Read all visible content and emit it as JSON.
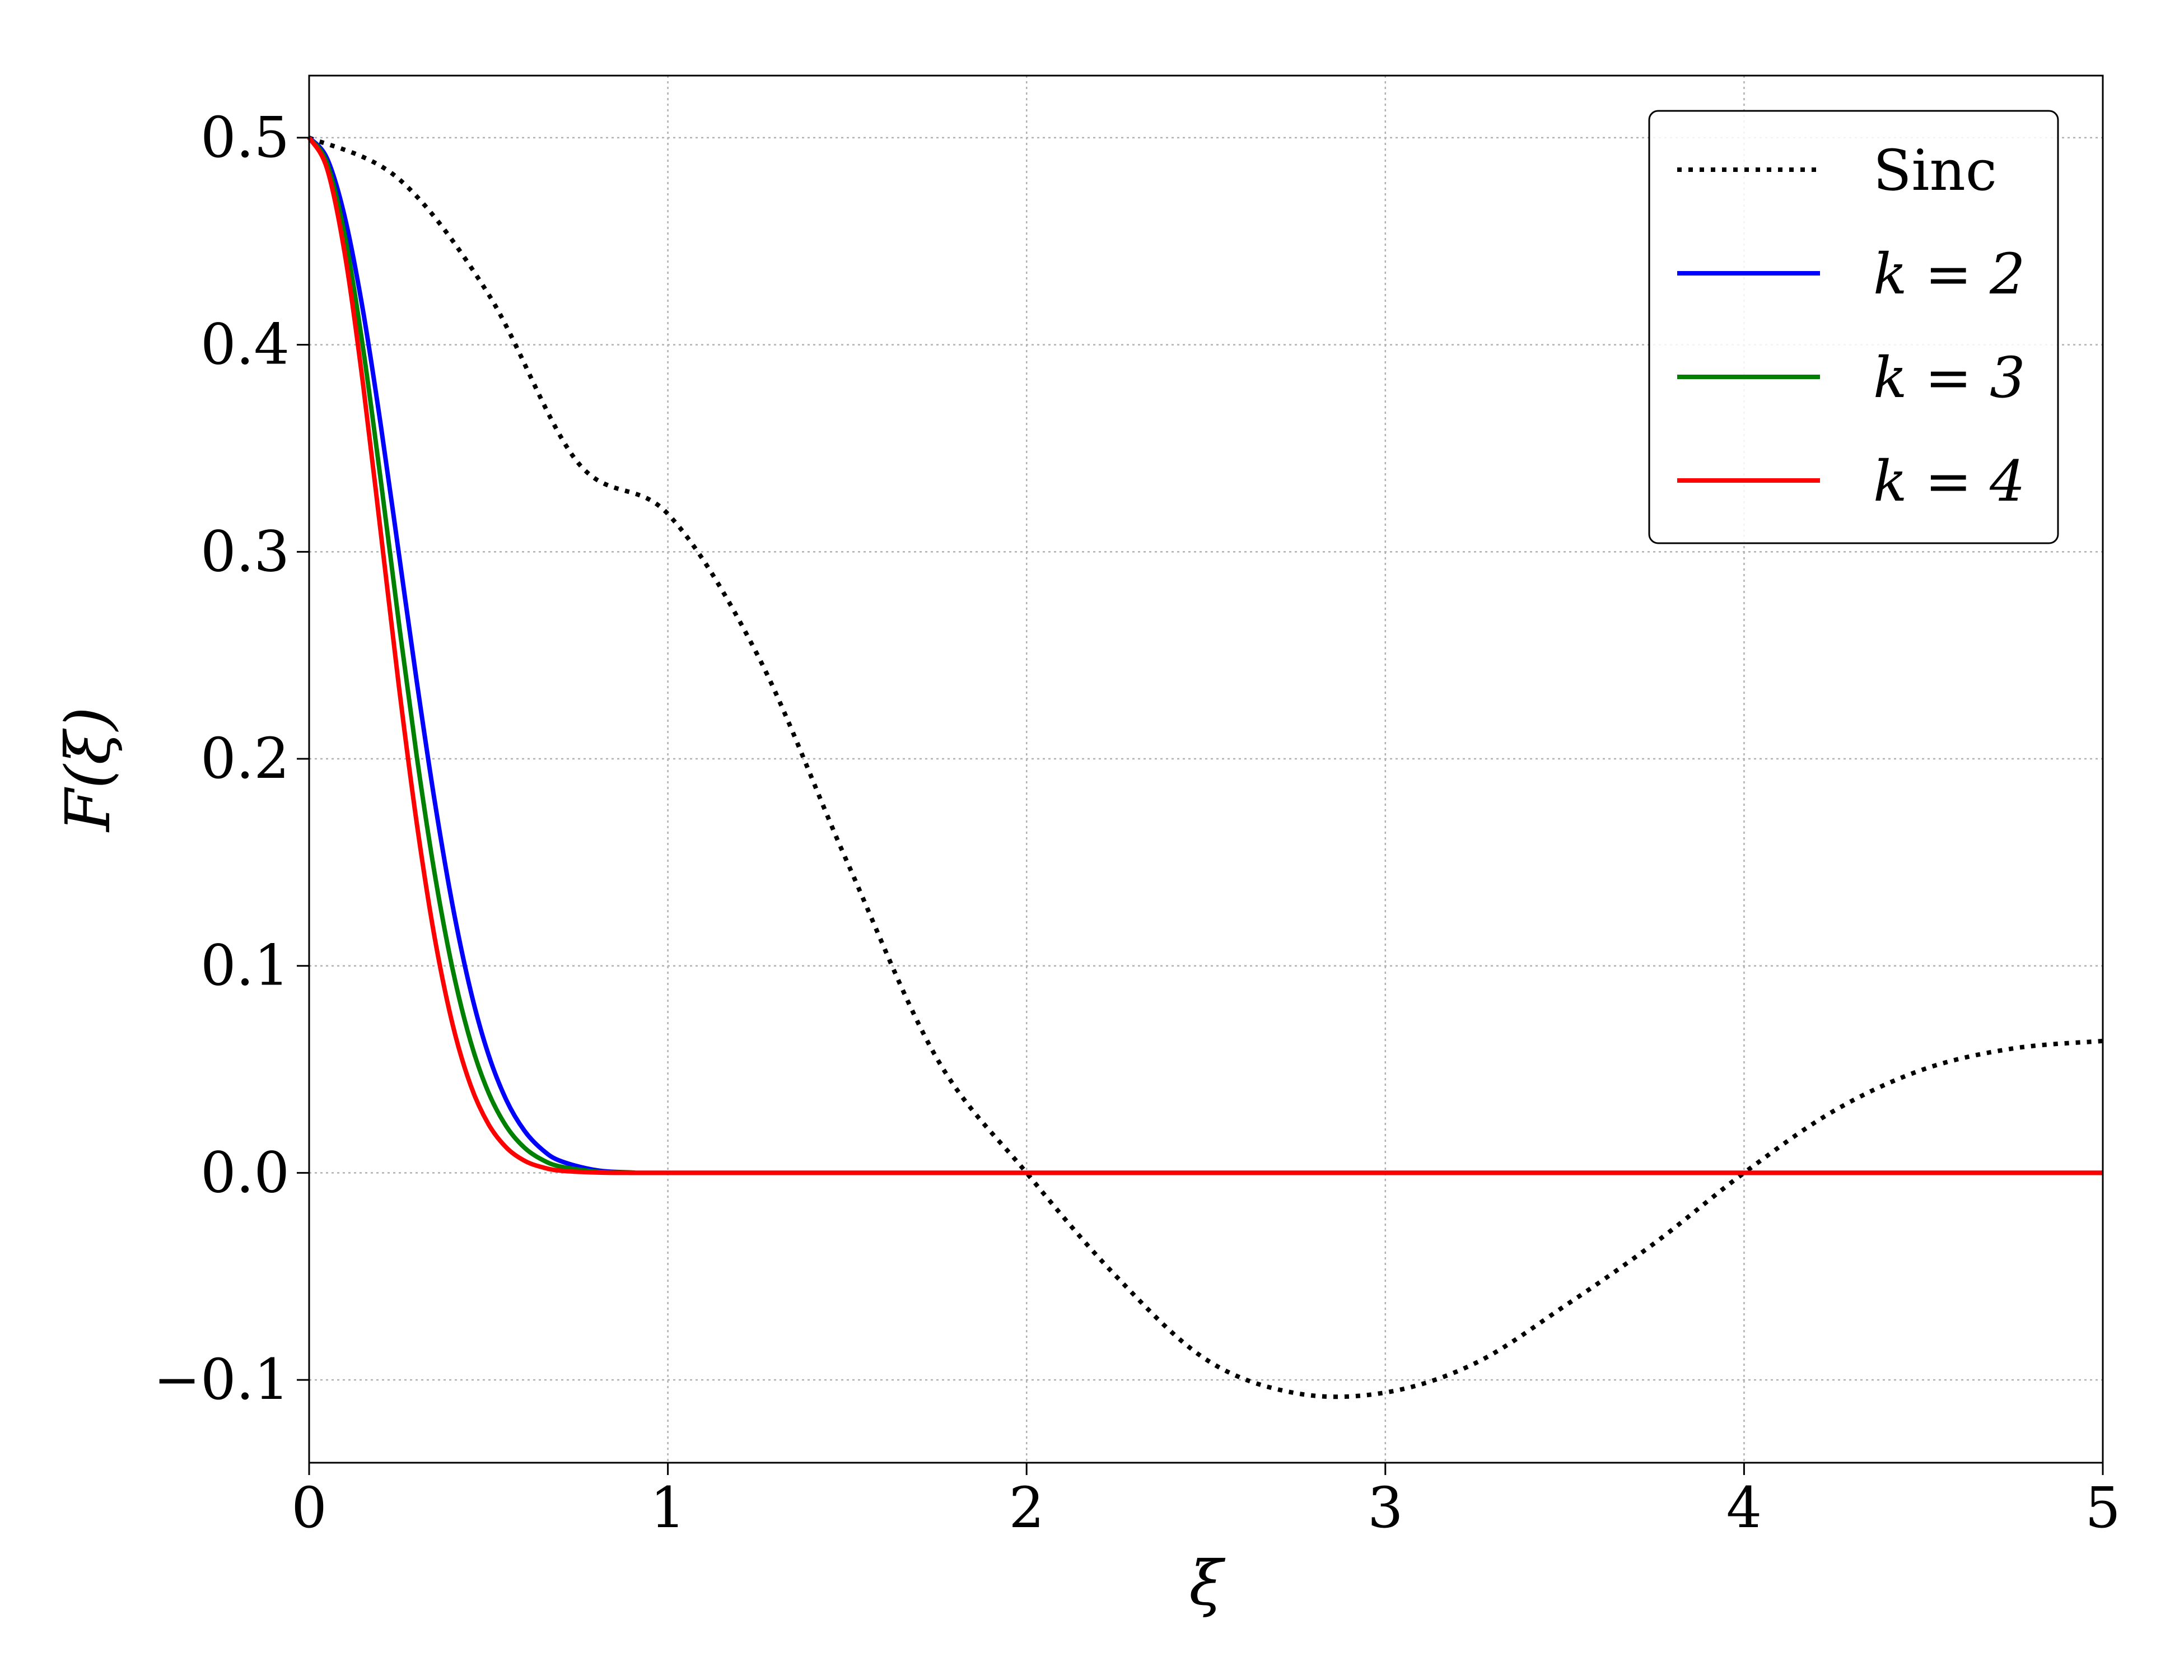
{
  "chart_data": {
    "type": "line",
    "xlabel": "ξ",
    "ylabel": "F(ξ)",
    "xlim": [
      0,
      5
    ],
    "ylim": [
      -0.14,
      0.53
    ],
    "xticks": [
      0,
      1,
      2,
      3,
      4,
      5
    ],
    "xtick_labels": [
      "0",
      "1",
      "2",
      "3",
      "4",
      "5"
    ],
    "yticks": [
      -0.1,
      0.0,
      0.1,
      0.2,
      0.3,
      0.4,
      0.5
    ],
    "ytick_labels": [
      "−0.1",
      "0.0",
      "0.1",
      "0.2",
      "0.3",
      "0.4",
      "0.5"
    ],
    "grid": true,
    "legend_position": "top-right",
    "series": [
      {
        "name": "Sinc",
        "color": "#000000",
        "style": "dotted",
        "x": [
          0,
          0.25,
          0.5,
          0.75,
          1.0,
          1.25,
          1.5,
          1.75,
          2.0,
          2.25,
          2.5,
          2.75,
          3.0,
          3.25,
          3.5,
          3.75,
          4.0,
          4.25,
          4.5,
          4.75,
          5.0
        ],
        "y": [
          0.5,
          0.4801,
          0.4244,
          0.3429,
          0.3183,
          0.2501,
          0.1501,
          0.0553,
          0.0,
          -0.05,
          -0.0901,
          -0.1064,
          -0.1061,
          -0.092,
          -0.0643,
          -0.034,
          0.0,
          0.0299,
          0.05,
          0.0601,
          0.0637
        ]
      },
      {
        "name": "k = 2",
        "color": "#0000ff",
        "style": "solid",
        "x": [
          0,
          0.05,
          0.1,
          0.15,
          0.2,
          0.25,
          0.3,
          0.35,
          0.4,
          0.45,
          0.5,
          0.55,
          0.6,
          0.65,
          0.7,
          0.8,
          0.9,
          1.0,
          2.0,
          3.0,
          4.0,
          5.0
        ],
        "y": [
          0.5,
          0.49,
          0.4612,
          0.4167,
          0.3609,
          0.2994,
          0.2374,
          0.1796,
          0.1291,
          0.0881,
          0.0571,
          0.0351,
          0.0204,
          0.0112,
          0.0058,
          0.0013,
          0.0002,
          0.0,
          0.0,
          0.0,
          0.0,
          0.0
        ]
      },
      {
        "name": "k = 3",
        "color": "#008000",
        "style": "solid",
        "x": [
          0,
          0.05,
          0.1,
          0.15,
          0.2,
          0.25,
          0.3,
          0.35,
          0.4,
          0.45,
          0.5,
          0.55,
          0.6,
          0.65,
          0.7,
          0.8,
          0.9,
          1.0,
          2.0,
          3.0,
          4.0,
          5.0
        ],
        "y": [
          0.5,
          0.4876,
          0.4522,
          0.3988,
          0.3342,
          0.266,
          0.2012,
          0.1445,
          0.0984,
          0.0635,
          0.0388,
          0.0224,
          0.0122,
          0.0063,
          0.0031,
          0.0006,
          0.0001,
          0.0,
          0.0,
          0.0,
          0.0,
          0.0
        ]
      },
      {
        "name": "k = 4",
        "color": "#ff0000",
        "style": "solid",
        "x": [
          0,
          0.05,
          0.1,
          0.15,
          0.2,
          0.25,
          0.3,
          0.35,
          0.4,
          0.45,
          0.5,
          0.55,
          0.6,
          0.65,
          0.7,
          0.8,
          0.9,
          1.0,
          2.0,
          3.0,
          4.0,
          5.0
        ],
        "y": [
          0.5,
          0.4851,
          0.4433,
          0.3814,
          0.3089,
          0.2355,
          0.1689,
          0.1136,
          0.0717,
          0.0424,
          0.0235,
          0.0122,
          0.0059,
          0.0027,
          0.0011,
          0.0002,
          0.0,
          0.0,
          0.0,
          0.0,
          0.0,
          0.0
        ]
      }
    ]
  }
}
